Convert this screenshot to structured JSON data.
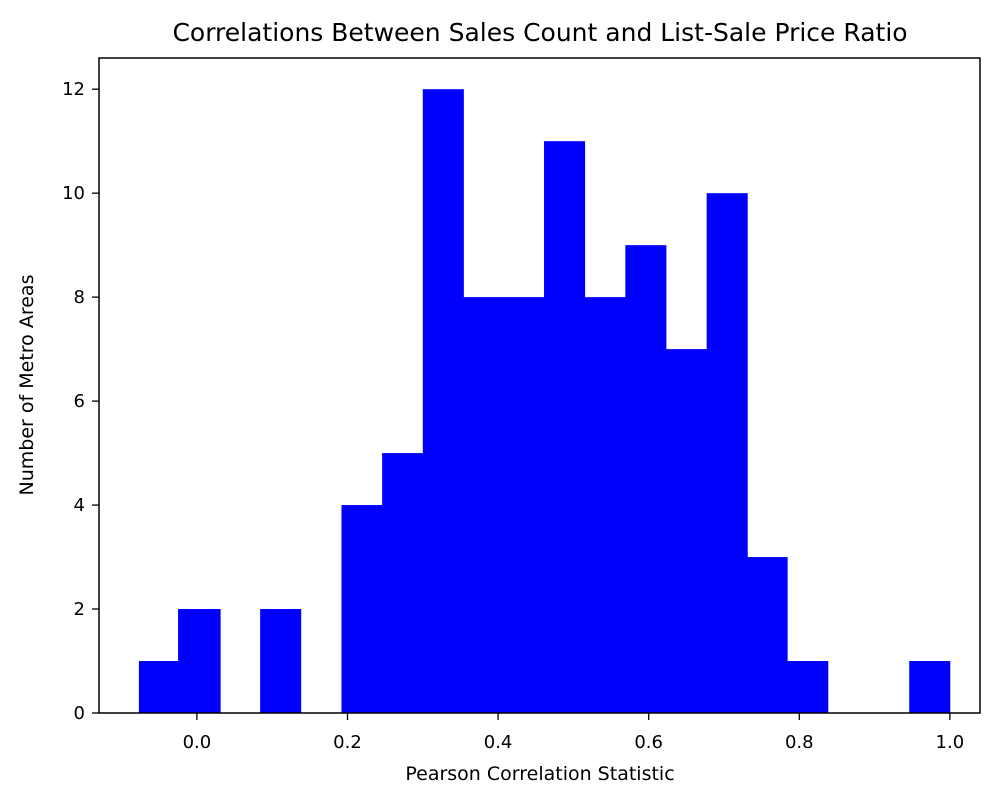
{
  "chart_data": {
    "type": "bar",
    "title": "Correlations Between Sales Count and List-Sale Price Ratio",
    "xlabel": "Pearson Correlation Statistic",
    "ylabel": "Number of Metro Areas",
    "bar_color": "#0000ff",
    "xlim": [
      -0.13,
      1.04
    ],
    "ylim": [
      0,
      12.6
    ],
    "xticks": [
      0.0,
      0.2,
      0.4,
      0.6,
      0.8,
      1.0
    ],
    "xtick_labels": [
      "0.0",
      "0.2",
      "0.4",
      "0.6",
      "0.8",
      "1.0"
    ],
    "yticks": [
      0,
      2,
      4,
      6,
      8,
      10,
      12
    ],
    "ytick_labels": [
      "0",
      "2",
      "4",
      "6",
      "8",
      "10",
      "12"
    ],
    "grid": false,
    "bins": [
      {
        "start": -0.077,
        "end": -0.025,
        "count": 1
      },
      {
        "start": -0.025,
        "end": 0.031,
        "count": 2
      },
      {
        "start": 0.031,
        "end": 0.084,
        "count": 0
      },
      {
        "start": 0.084,
        "end": 0.138,
        "count": 2
      },
      {
        "start": 0.138,
        "end": 0.192,
        "count": 0
      },
      {
        "start": 0.192,
        "end": 0.246,
        "count": 4
      },
      {
        "start": 0.246,
        "end": 0.3,
        "count": 5
      },
      {
        "start": 0.3,
        "end": 0.354,
        "count": 12
      },
      {
        "start": 0.354,
        "end": 0.407,
        "count": 8
      },
      {
        "start": 0.407,
        "end": 0.461,
        "count": 8
      },
      {
        "start": 0.461,
        "end": 0.515,
        "count": 11
      },
      {
        "start": 0.515,
        "end": 0.569,
        "count": 8
      },
      {
        "start": 0.569,
        "end": 0.623,
        "count": 9
      },
      {
        "start": 0.623,
        "end": 0.677,
        "count": 7
      },
      {
        "start": 0.677,
        "end": 0.731,
        "count": 10
      },
      {
        "start": 0.731,
        "end": 0.784,
        "count": 3
      },
      {
        "start": 0.784,
        "end": 0.838,
        "count": 1
      },
      {
        "start": 0.838,
        "end": 0.892,
        "count": 0
      },
      {
        "start": 0.892,
        "end": 0.946,
        "count": 0
      },
      {
        "start": 0.946,
        "end": 1.0,
        "count": 1
      }
    ]
  }
}
